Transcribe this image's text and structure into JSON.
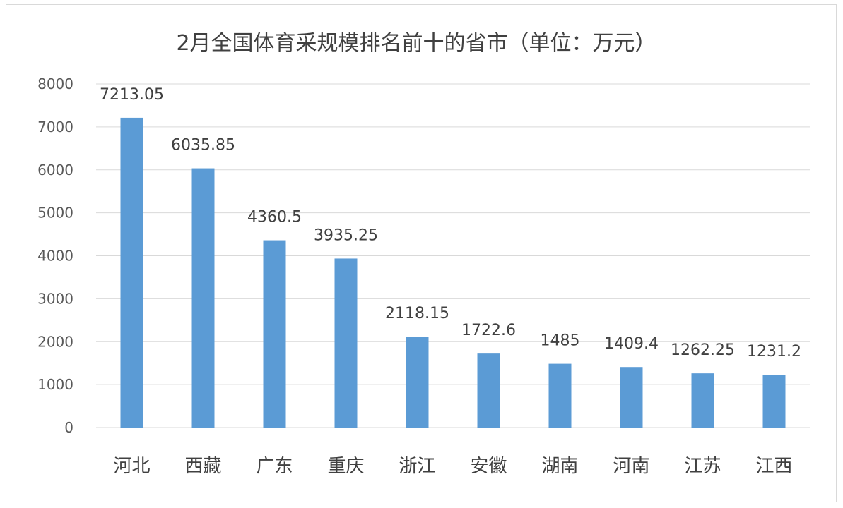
{
  "chart_data": {
    "type": "bar",
    "title": "2月全国体育采规模排名前十的省市（单位：万元）",
    "categories": [
      "河北",
      "西藏",
      "广东",
      "重庆",
      "浙江",
      "安徽",
      "湖南",
      "河南",
      "江苏",
      "江西"
    ],
    "values": [
      7213.05,
      6035.85,
      4360.5,
      3935.25,
      2118.15,
      1722.6,
      1485,
      1409.4,
      1262.25,
      1231.2
    ],
    "value_labels": [
      "7213.05",
      "6035.85",
      "4360.5",
      "3935.25",
      "2118.15",
      "1722.6",
      "1485",
      "1409.4",
      "1262.25",
      "1231.2"
    ],
    "ylim": [
      0,
      8000
    ],
    "yticks": [
      "0",
      "1000",
      "2000",
      "3000",
      "4000",
      "5000",
      "6000",
      "7000",
      "8000"
    ],
    "grid": true,
    "legend": "none",
    "bar_color": "#5b9bd5",
    "grid_color": "#d9d9d9"
  }
}
